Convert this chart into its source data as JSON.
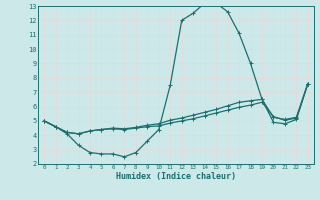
{
  "xlabel": "Humidex (Indice chaleur)",
  "ylabel": "",
  "xlim": [
    -0.5,
    23.5
  ],
  "ylim": [
    2,
    13
  ],
  "yticks": [
    2,
    3,
    4,
    5,
    6,
    7,
    8,
    9,
    10,
    11,
    12,
    13
  ],
  "xticks": [
    0,
    1,
    2,
    3,
    4,
    5,
    6,
    7,
    8,
    9,
    10,
    11,
    12,
    13,
    14,
    15,
    16,
    17,
    18,
    19,
    20,
    21,
    22,
    23
  ],
  "background_color": "#cce8e8",
  "grid_color": "#aacccc",
  "line_color": "#1a7070",
  "line1_x": [
    0,
    1,
    2,
    3,
    4,
    5,
    6,
    7,
    8,
    9,
    10,
    11,
    12,
    13,
    14,
    15,
    16,
    17,
    18,
    19,
    20,
    21,
    22,
    23
  ],
  "line1_y": [
    5.0,
    4.6,
    4.1,
    3.3,
    2.8,
    2.7,
    2.7,
    2.5,
    2.8,
    3.6,
    4.4,
    7.5,
    12.0,
    12.5,
    13.2,
    13.2,
    12.6,
    11.1,
    9.0,
    6.5,
    4.9,
    4.8,
    5.1,
    7.6
  ],
  "line2_x": [
    0,
    1,
    2,
    3,
    4,
    5,
    6,
    7,
    8,
    9,
    10,
    11,
    12,
    13,
    14,
    15,
    16,
    17,
    18,
    19,
    20,
    21,
    22,
    23
  ],
  "line2_y": [
    5.0,
    4.6,
    4.2,
    4.1,
    4.3,
    4.4,
    4.45,
    4.4,
    4.5,
    4.6,
    4.65,
    4.85,
    5.0,
    5.15,
    5.35,
    5.55,
    5.75,
    5.95,
    6.1,
    6.3,
    5.3,
    5.05,
    5.2,
    7.6
  ],
  "line3_x": [
    0,
    1,
    2,
    3,
    4,
    5,
    6,
    7,
    8,
    9,
    10,
    11,
    12,
    13,
    14,
    15,
    16,
    17,
    18,
    19,
    20,
    21,
    22,
    23
  ],
  "line3_y": [
    5.0,
    4.6,
    4.2,
    4.1,
    4.3,
    4.4,
    4.5,
    4.45,
    4.55,
    4.7,
    4.8,
    5.05,
    5.2,
    5.4,
    5.6,
    5.8,
    6.05,
    6.3,
    6.4,
    6.5,
    5.25,
    5.1,
    5.25,
    7.6
  ]
}
